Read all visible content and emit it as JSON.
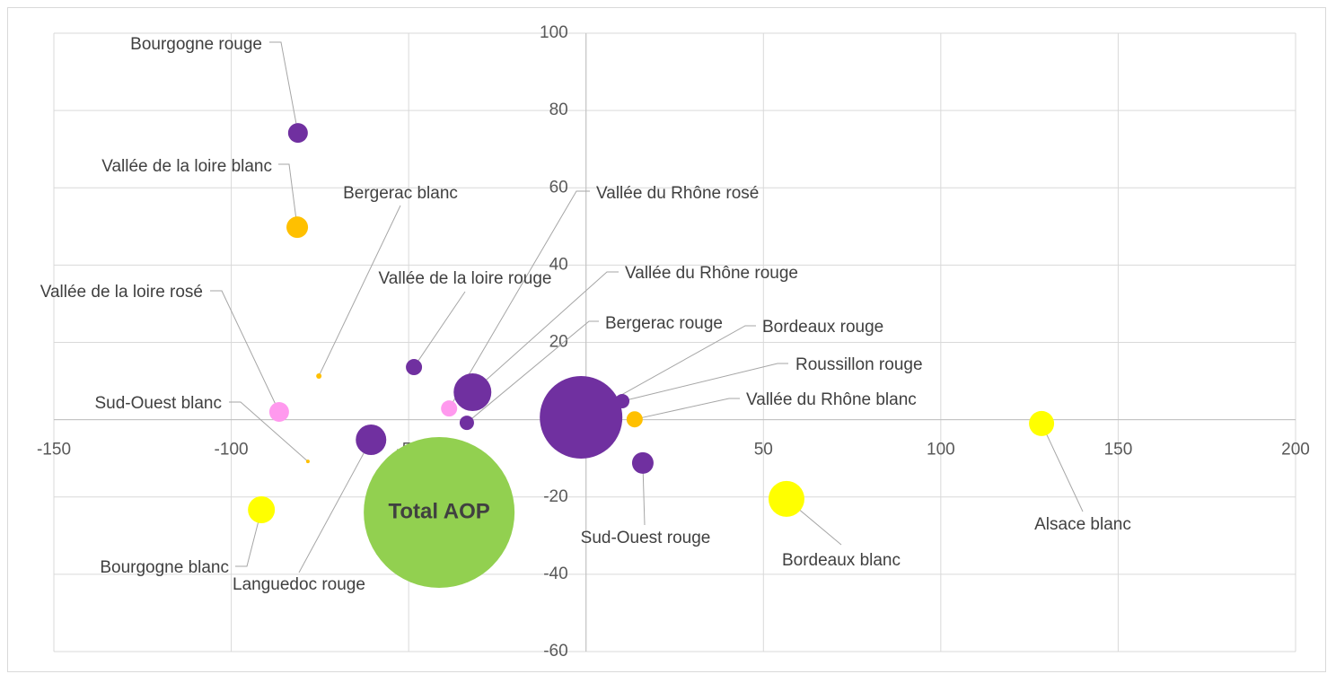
{
  "chart_data": {
    "type": "bubble",
    "xlim": [
      -150,
      200
    ],
    "xticks": [
      -150,
      -100,
      -50,
      0,
      50,
      100,
      150,
      200
    ],
    "ylim": [
      -60,
      100
    ],
    "yticks": [
      -60,
      -40,
      -20,
      0,
      20,
      40,
      60,
      80,
      100
    ],
    "grid": true,
    "points": [
      {
        "name": "Bourgogne rouge",
        "x": -81.2,
        "y": 74.2,
        "size": 121,
        "color": "#7030a0"
      },
      {
        "name": "Vallée de la loire blanc",
        "x": -81.4,
        "y": 49.8,
        "size": 144,
        "color": "#ffc000"
      },
      {
        "name": "Bergerac blanc",
        "x": -75.3,
        "y": 11.3,
        "size": 9,
        "color": "#ffc000"
      },
      {
        "name": "Vallée de la loire rosé",
        "x": -86.5,
        "y": 2,
        "size": 121,
        "color": "#ff99ee"
      },
      {
        "name": "Vallée de la loire rouge",
        "x": -48.5,
        "y": 13.6,
        "size": 81,
        "color": "#7030a0"
      },
      {
        "name": "Vallée du Rhône rosé",
        "x": -38.6,
        "y": 2.9,
        "size": 81,
        "color": "#ff99ee"
      },
      {
        "name": "Vallée du Rhône rouge",
        "x": -32,
        "y": 7.1,
        "size": 441,
        "color": "#7030a0"
      },
      {
        "name": "Bergerac rouge",
        "x": -33.6,
        "y": -0.8,
        "size": 64,
        "color": "#7030a0"
      },
      {
        "name": "Bordeaux rouge",
        "x": -1.4,
        "y": 0.6,
        "size": 2116,
        "color": "#7030a0"
      },
      {
        "name": "Roussillon rouge",
        "x": 10.2,
        "y": 4.8,
        "size": 64,
        "color": "#7030a0"
      },
      {
        "name": "Vallée du Rhône blanc",
        "x": 13.7,
        "y": 0.1,
        "size": 81,
        "color": "#ffc000"
      },
      {
        "name": "Sud-Ouest blanc",
        "x": -78.4,
        "y": -10.8,
        "size": 4,
        "color": "#ffc000"
      },
      {
        "name": "Languedoc rouge",
        "x": -60.6,
        "y": -5.2,
        "size": 289,
        "color": "#7030a0"
      },
      {
        "name": "Sud-Ouest rouge",
        "x": 16,
        "y": -11.2,
        "size": 144,
        "color": "#7030a0"
      },
      {
        "name": "Bourgogne blanc",
        "x": -91.5,
        "y": -23.3,
        "size": 225,
        "color": "#ffff00"
      },
      {
        "name": "Total AOP",
        "x": -41.4,
        "y": -24,
        "size": 7056,
        "color": "#92d050"
      },
      {
        "name": "Bordeaux blanc",
        "x": 56.5,
        "y": -20.5,
        "size": 400,
        "color": "#ffff00"
      },
      {
        "name": "Alsace blanc",
        "x": 128.4,
        "y": -1,
        "size": 196,
        "color": "#ffff00"
      }
    ]
  }
}
